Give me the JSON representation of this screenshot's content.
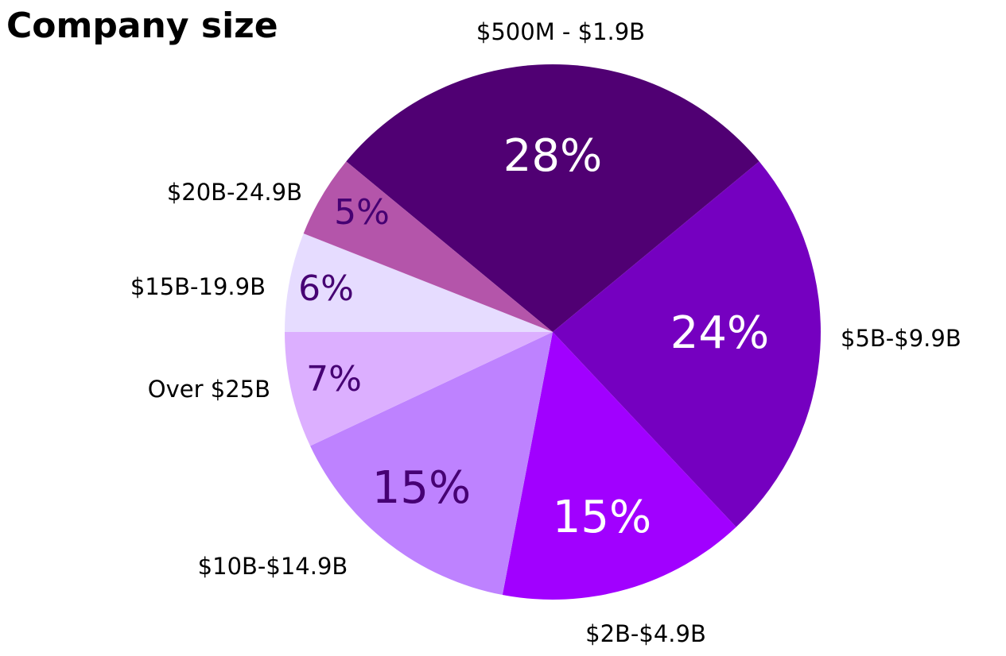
{
  "chart_data": {
    "type": "pie",
    "title": "Company size",
    "categories": [
      "$500M - $1.9B",
      "$5B-$9.9B",
      "$2B-$4.9B",
      "$10B-$14.9B",
      "Over $25B",
      "$15B-19.9B",
      "$20B-24.9B"
    ],
    "values": [
      28,
      24,
      15,
      15,
      7,
      6,
      5
    ],
    "value_labels": [
      "28%",
      "24%",
      "15%",
      "15%",
      "7%",
      "6%",
      "5%"
    ],
    "colors": [
      "#500073",
      "#7500c0",
      "#a100ff",
      "#be82ff",
      "#dcafff",
      "#e6dcff",
      "#b455aa"
    ]
  }
}
